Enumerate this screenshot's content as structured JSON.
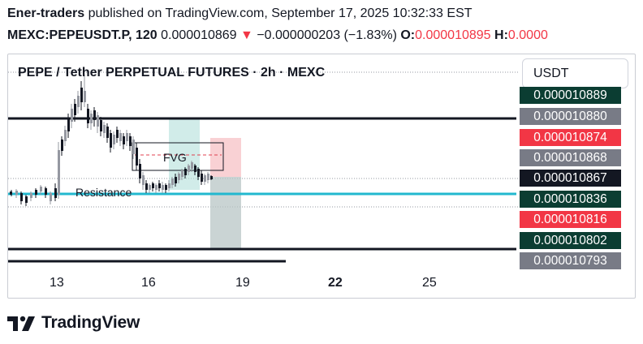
{
  "header": {
    "author": "Ener-traders",
    "published_text": " published on TradingView.com, September 17, 2025 10:32:33 EST",
    "symbol": "MEXC:PEPEUSDT.P, 120",
    "last_price": "0.000010869",
    "change_arrow": "▼",
    "change": "−0.000000203 (−1.83%)",
    "open_label": "O:",
    "open_value": "0.000010895",
    "high_label": "H:",
    "high_value": "0.0000"
  },
  "chart": {
    "title": "PEPE / Tether PERPETUAL FUTURES · 2h · MEXC",
    "currency": "USDT",
    "fvg_label": "FVG",
    "resistance_label": "Resistance"
  },
  "price_scale": [
    {
      "value": "0.000010889",
      "color": "#0b3d32"
    },
    {
      "value": "0.000010880",
      "color": "#787b86"
    },
    {
      "value": "0.000010874",
      "color": "#f23645"
    },
    {
      "value": "0.000010868",
      "color": "#787b86"
    },
    {
      "value": "0.000010867",
      "color": "#131722"
    },
    {
      "value": "0.000010836",
      "color": "#0b3d32"
    },
    {
      "value": "0.000010816",
      "color": "#f23645"
    },
    {
      "value": "0.000010802",
      "color": "#0b3d32"
    },
    {
      "value": "0.000010793",
      "color": "#787b86"
    }
  ],
  "time_axis": [
    "13",
    "16",
    "19",
    "22",
    "25"
  ],
  "brand": {
    "name": "TradingView",
    "icon": "tradingview-logo-icon"
  }
}
